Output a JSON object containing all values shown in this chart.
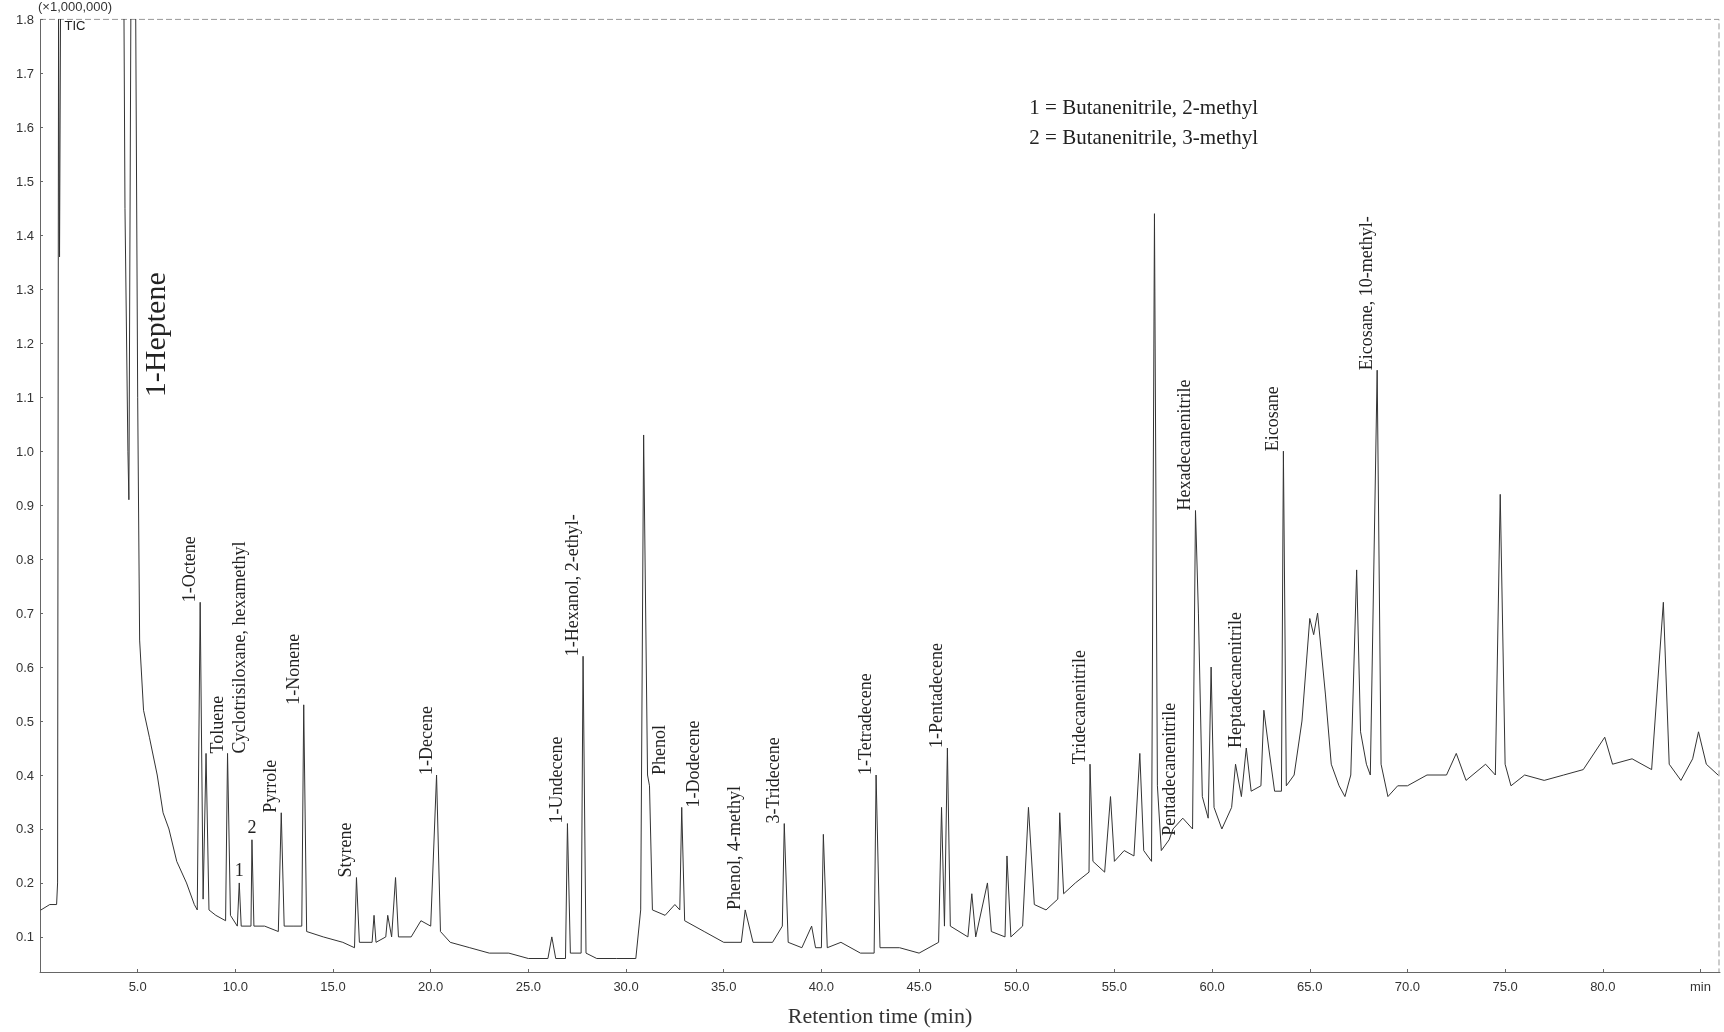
{
  "chart_data": {
    "type": "line",
    "xlabel": "Retention time (min)",
    "ylabel": "(×1,000,000)",
    "xlim": [
      0,
      86
    ],
    "ylim": [
      0.035,
      1.8
    ],
    "xticks": [
      {
        "value": 5,
        "label": "5.0"
      },
      {
        "value": 10,
        "label": "10.0"
      },
      {
        "value": 15,
        "label": "15.0"
      },
      {
        "value": 20,
        "label": "20.0"
      },
      {
        "value": 25,
        "label": "25.0"
      },
      {
        "value": 30,
        "label": "30.0"
      },
      {
        "value": 35,
        "label": "35.0"
      },
      {
        "value": 40,
        "label": "40.0"
      },
      {
        "value": 45,
        "label": "45.0"
      },
      {
        "value": 50,
        "label": "50.0"
      },
      {
        "value": 55,
        "label": "55.0"
      },
      {
        "value": 60,
        "label": "60.0"
      },
      {
        "value": 65,
        "label": "65.0"
      },
      {
        "value": 70,
        "label": "70.0"
      },
      {
        "value": 75,
        "label": "75.0"
      },
      {
        "value": 80,
        "label": "80.0"
      },
      {
        "value": 85,
        "label": "min"
      }
    ],
    "yticks": [
      0.1,
      0.2,
      0.3,
      0.4,
      0.5,
      0.6,
      0.7,
      0.8,
      0.9,
      {
        "value": 1,
        "label": "1.0"
      },
      1.1,
      1.2,
      1.3,
      1.4,
      1.5,
      1.6,
      1.7,
      1.8
    ],
    "grid": false,
    "marker": "none",
    "line_style": "solid",
    "series": [
      {
        "color": "#333333",
        "x": [
          0.05,
          0.5,
          0.85,
          0.9,
          0.95,
          1.0,
          1.05,
          1.1,
          4.3,
          4.35,
          4.5,
          4.55,
          4.65,
          4.8,
          4.9,
          5.0,
          5.1,
          5.3,
          5.6,
          6.0,
          6.3,
          6.6,
          7.0,
          7.5,
          7.9,
          8.05,
          8.2,
          8.35,
          8.5,
          8.65,
          9.0,
          9.5,
          9.6,
          9.75,
          10.1,
          10.2,
          10.3,
          10.8,
          10.85,
          10.95,
          11.5,
          12.2,
          12.35,
          12.5,
          13.0,
          13.4,
          13.5,
          13.65,
          14.5,
          15.5,
          16.1,
          16.2,
          16.35,
          17,
          17.1,
          17.2,
          17.7,
          17.8,
          18.0,
          18.2,
          18.35,
          19.0,
          19.5,
          20.0,
          20.3,
          20.5,
          21,
          22,
          23,
          24,
          25,
          26,
          26.2,
          26.4,
          26.9,
          27.0,
          27.15,
          27.7,
          27.8,
          27.95,
          28.5,
          29.5,
          30.5,
          30.75,
          30.9,
          31.1,
          31.2,
          31.35,
          32,
          32.5,
          32.75,
          32.85,
          33.0,
          34,
          35,
          35.9,
          36.1,
          36.5,
          37.5,
          38.0,
          38.1,
          38.3,
          39,
          39.5,
          39.7,
          40.0,
          40.1,
          40.3,
          41,
          42,
          42.7,
          42.8,
          43.0,
          44,
          45,
          46,
          46.15,
          46.3,
          46.45,
          46.6,
          47.5,
          47.7,
          47.9,
          48.5,
          48.7,
          49.4,
          49.5,
          49.7,
          50.3,
          50.6,
          50.9,
          51.5,
          52.1,
          52.2,
          52.4,
          53,
          53.7,
          53.75,
          53.9,
          54.5,
          54.8,
          55,
          55.5,
          56,
          56.3,
          56.5,
          56.9,
          57.05,
          57.2,
          57.4,
          57.8,
          58,
          58.5,
          59,
          59.15,
          59.3,
          59.5,
          59.8,
          59.95,
          60.1,
          60.5,
          61,
          61.2,
          61.5,
          61.75,
          62,
          62.5,
          62.65,
          62.9,
          63.2,
          63.55,
          63.65,
          63.8,
          64.2,
          64.6,
          65,
          65.2,
          65.4,
          65.8,
          66.1,
          66.5,
          66.8,
          67.1,
          67.4,
          67.6,
          67.9,
          68.1,
          68.45,
          68.65,
          69,
          69.5,
          70,
          71,
          72,
          72.5,
          73,
          74,
          74.5,
          74.75,
          75,
          75.3,
          76,
          77,
          78,
          79,
          80.1,
          80.5,
          81.5,
          82.5,
          83.1,
          83.4,
          84,
          84.6,
          84.9,
          85.3,
          85.9
        ],
        "values": [
          0.15,
          0.16,
          0.16,
          0.2,
          1.8,
          1.36,
          1.8,
          null,
          1.8,
          1.45,
          1.0,
          0.91,
          1.8,
          null,
          1.8,
          1.1,
          0.65,
          0.52,
          0.47,
          0.4,
          0.33,
          0.3,
          0.24,
          0.2,
          0.16,
          0.15,
          0.72,
          0.17,
          0.44,
          0.15,
          0.14,
          0.13,
          0.44,
          0.14,
          0.12,
          0.2,
          0.12,
          0.12,
          0.28,
          0.12,
          0.12,
          0.11,
          0.33,
          0.12,
          0.12,
          0.12,
          0.53,
          0.11,
          0.1,
          0.09,
          0.08,
          0.21,
          0.09,
          0.09,
          0.14,
          0.09,
          0.1,
          0.14,
          0.1,
          0.21,
          0.1,
          0.1,
          0.13,
          0.12,
          0.4,
          0.11,
          0.09,
          0.08,
          0.07,
          0.07,
          0.06,
          0.06,
          0.1,
          0.06,
          0.06,
          0.31,
          0.07,
          0.07,
          0.62,
          0.07,
          0.06,
          0.06,
          0.06,
          0.15,
          1.03,
          0.4,
          0.38,
          0.15,
          0.14,
          0.16,
          0.15,
          0.34,
          0.13,
          0.11,
          0.09,
          0.09,
          0.15,
          0.09,
          0.09,
          0.12,
          0.31,
          0.09,
          0.08,
          0.12,
          0.08,
          0.08,
          0.29,
          0.08,
          0.09,
          0.07,
          0.07,
          0.4,
          0.08,
          0.08,
          0.07,
          0.09,
          0.34,
          0.12,
          0.45,
          0.12,
          0.1,
          0.18,
          0.1,
          0.2,
          0.11,
          0.1,
          0.25,
          0.1,
          0.12,
          0.34,
          0.16,
          0.15,
          0.17,
          0.33,
          0.18,
          0.2,
          0.22,
          0.42,
          0.24,
          0.22,
          0.36,
          0.24,
          0.26,
          0.25,
          0.44,
          0.26,
          0.24,
          1.44,
          0.38,
          0.26,
          0.28,
          0.3,
          0.32,
          0.3,
          0.89,
          0.7,
          0.36,
          0.32,
          0.6,
          0.34,
          0.3,
          0.34,
          0.42,
          0.36,
          0.45,
          0.37,
          0.38,
          0.52,
          0.45,
          0.37,
          0.37,
          1.0,
          0.38,
          0.4,
          0.5,
          0.69,
          0.66,
          0.7,
          0.55,
          0.42,
          0.38,
          0.36,
          0.4,
          0.78,
          0.48,
          0.42,
          0.4,
          1.15,
          0.42,
          0.36,
          0.38,
          0.38,
          0.4,
          0.4,
          0.44,
          0.39,
          0.42,
          0.4,
          0.92,
          0.42,
          0.38,
          0.4,
          0.39,
          0.4,
          0.41,
          0.47,
          0.42,
          0.43,
          0.41,
          0.72,
          0.42,
          0.39,
          0.43,
          0.48,
          0.42,
          0.4
        ]
      }
    ],
    "annotations": [
      {
        "text": "TIC",
        "x": 1.05,
        "y": 1.8
      },
      "1 = Butanenitrile, 2-methyl",
      "2 = Butanenitrile, 3-methyl",
      {
        "text": "1-Heptene",
        "x": 5.0,
        "y": 1.1
      },
      {
        "text": "1-Octene",
        "x": 8.2,
        "y": 0.72
      },
      {
        "text": "Toluene",
        "x": 8.5,
        "y": 0.44
      },
      {
        "text": "Cyclotrisiloxane, hexamethyl",
        "x": 9.6,
        "y": 0.44
      },
      {
        "text": "1",
        "x": 10.2,
        "y": 0.2
      },
      {
        "text": "2",
        "x": 10.85,
        "y": 0.28
      },
      {
        "text": "Pyrrole",
        "x": 12.35,
        "y": 0.33
      },
      {
        "text": "1-Nonene",
        "x": 13.5,
        "y": 0.53
      },
      {
        "text": "Styrene",
        "x": 16.2,
        "y": 0.21
      },
      {
        "text": "1-Decene",
        "x": 20.3,
        "y": 0.4
      },
      {
        "text": "1-Undecene",
        "x": 27.0,
        "y": 0.31
      },
      {
        "text": "1-Hexanol, 2-ethyl-",
        "x": 27.8,
        "y": 0.62
      },
      {
        "text": "Phenol",
        "x": 31.1,
        "y": 0.4
      },
      {
        "text": "1-Dodecene",
        "x": 32.85,
        "y": 0.34
      },
      {
        "text": "Phenol, 4-methyl",
        "x": 36.1,
        "y": 0.15
      },
      {
        "text": "3-Tridecene",
        "x": 38.1,
        "y": 0.31
      },
      {
        "text": "1-Tetradecene",
        "x": 42.8,
        "y": 0.4
      },
      {
        "text": "1-Pentadecene",
        "x": 46.45,
        "y": 0.45
      },
      {
        "text": "Tridecanenitrile",
        "x": 53.75,
        "y": 0.42
      },
      {
        "text": "Pentadecanenitrile",
        "x": 57.8,
        "y": 0.28
      },
      {
        "text": "Hexadecanenitrile",
        "x": 59.15,
        "y": 0.89
      },
      {
        "text": "Heptadecanenitrile",
        "x": 61.75,
        "y": 0.45
      },
      {
        "text": "Eicosane",
        "x": 63.65,
        "y": 1.0
      },
      {
        "text": "Eicosane, 10-methyl-",
        "x": 68.45,
        "y": 1.15
      }
    ]
  }
}
